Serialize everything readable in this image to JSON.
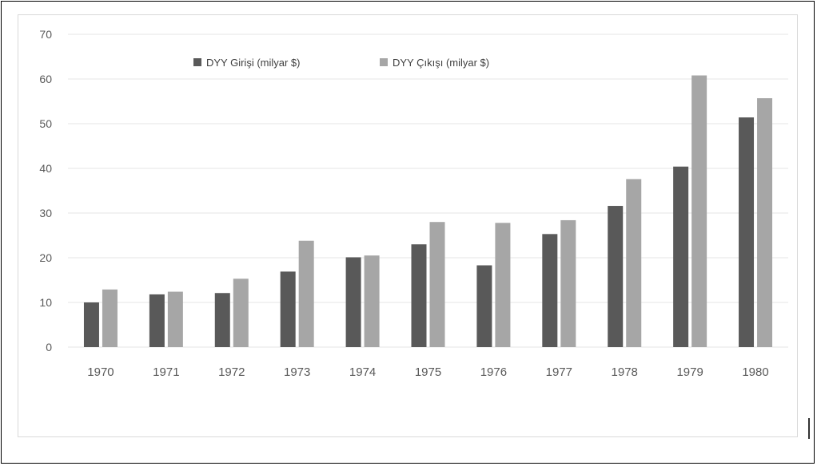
{
  "colors": {
    "series_dark": "#595959",
    "series_light": "#a6a6a6",
    "grid": "#e6e6e6",
    "axis_text": "#595959"
  },
  "chart_data": {
    "type": "bar",
    "categories": [
      "1970",
      "1971",
      "1972",
      "1973",
      "1974",
      "1975",
      "1976",
      "1977",
      "1978",
      "1979",
      "1980"
    ],
    "series": [
      {
        "name": "DYY Girişi (milyar $)",
        "values": [
          10,
          11.8,
          12.1,
          16.9,
          20.1,
          23,
          18.3,
          25.3,
          31.6,
          40.4,
          51.4
        ]
      },
      {
        "name": "DYY Çıkışı (milyar $)",
        "values": [
          12.9,
          12.4,
          15.3,
          23.8,
          20.5,
          28,
          27.8,
          28.4,
          37.6,
          60.8,
          55.7
        ]
      }
    ],
    "yticks": [
      "0",
      "10",
      "20",
      "30",
      "40",
      "50",
      "60",
      "70"
    ],
    "ylim": [
      0,
      70
    ],
    "grid": true,
    "legend_position": "top-center",
    "title": "",
    "xlabel": "",
    "ylabel": ""
  }
}
